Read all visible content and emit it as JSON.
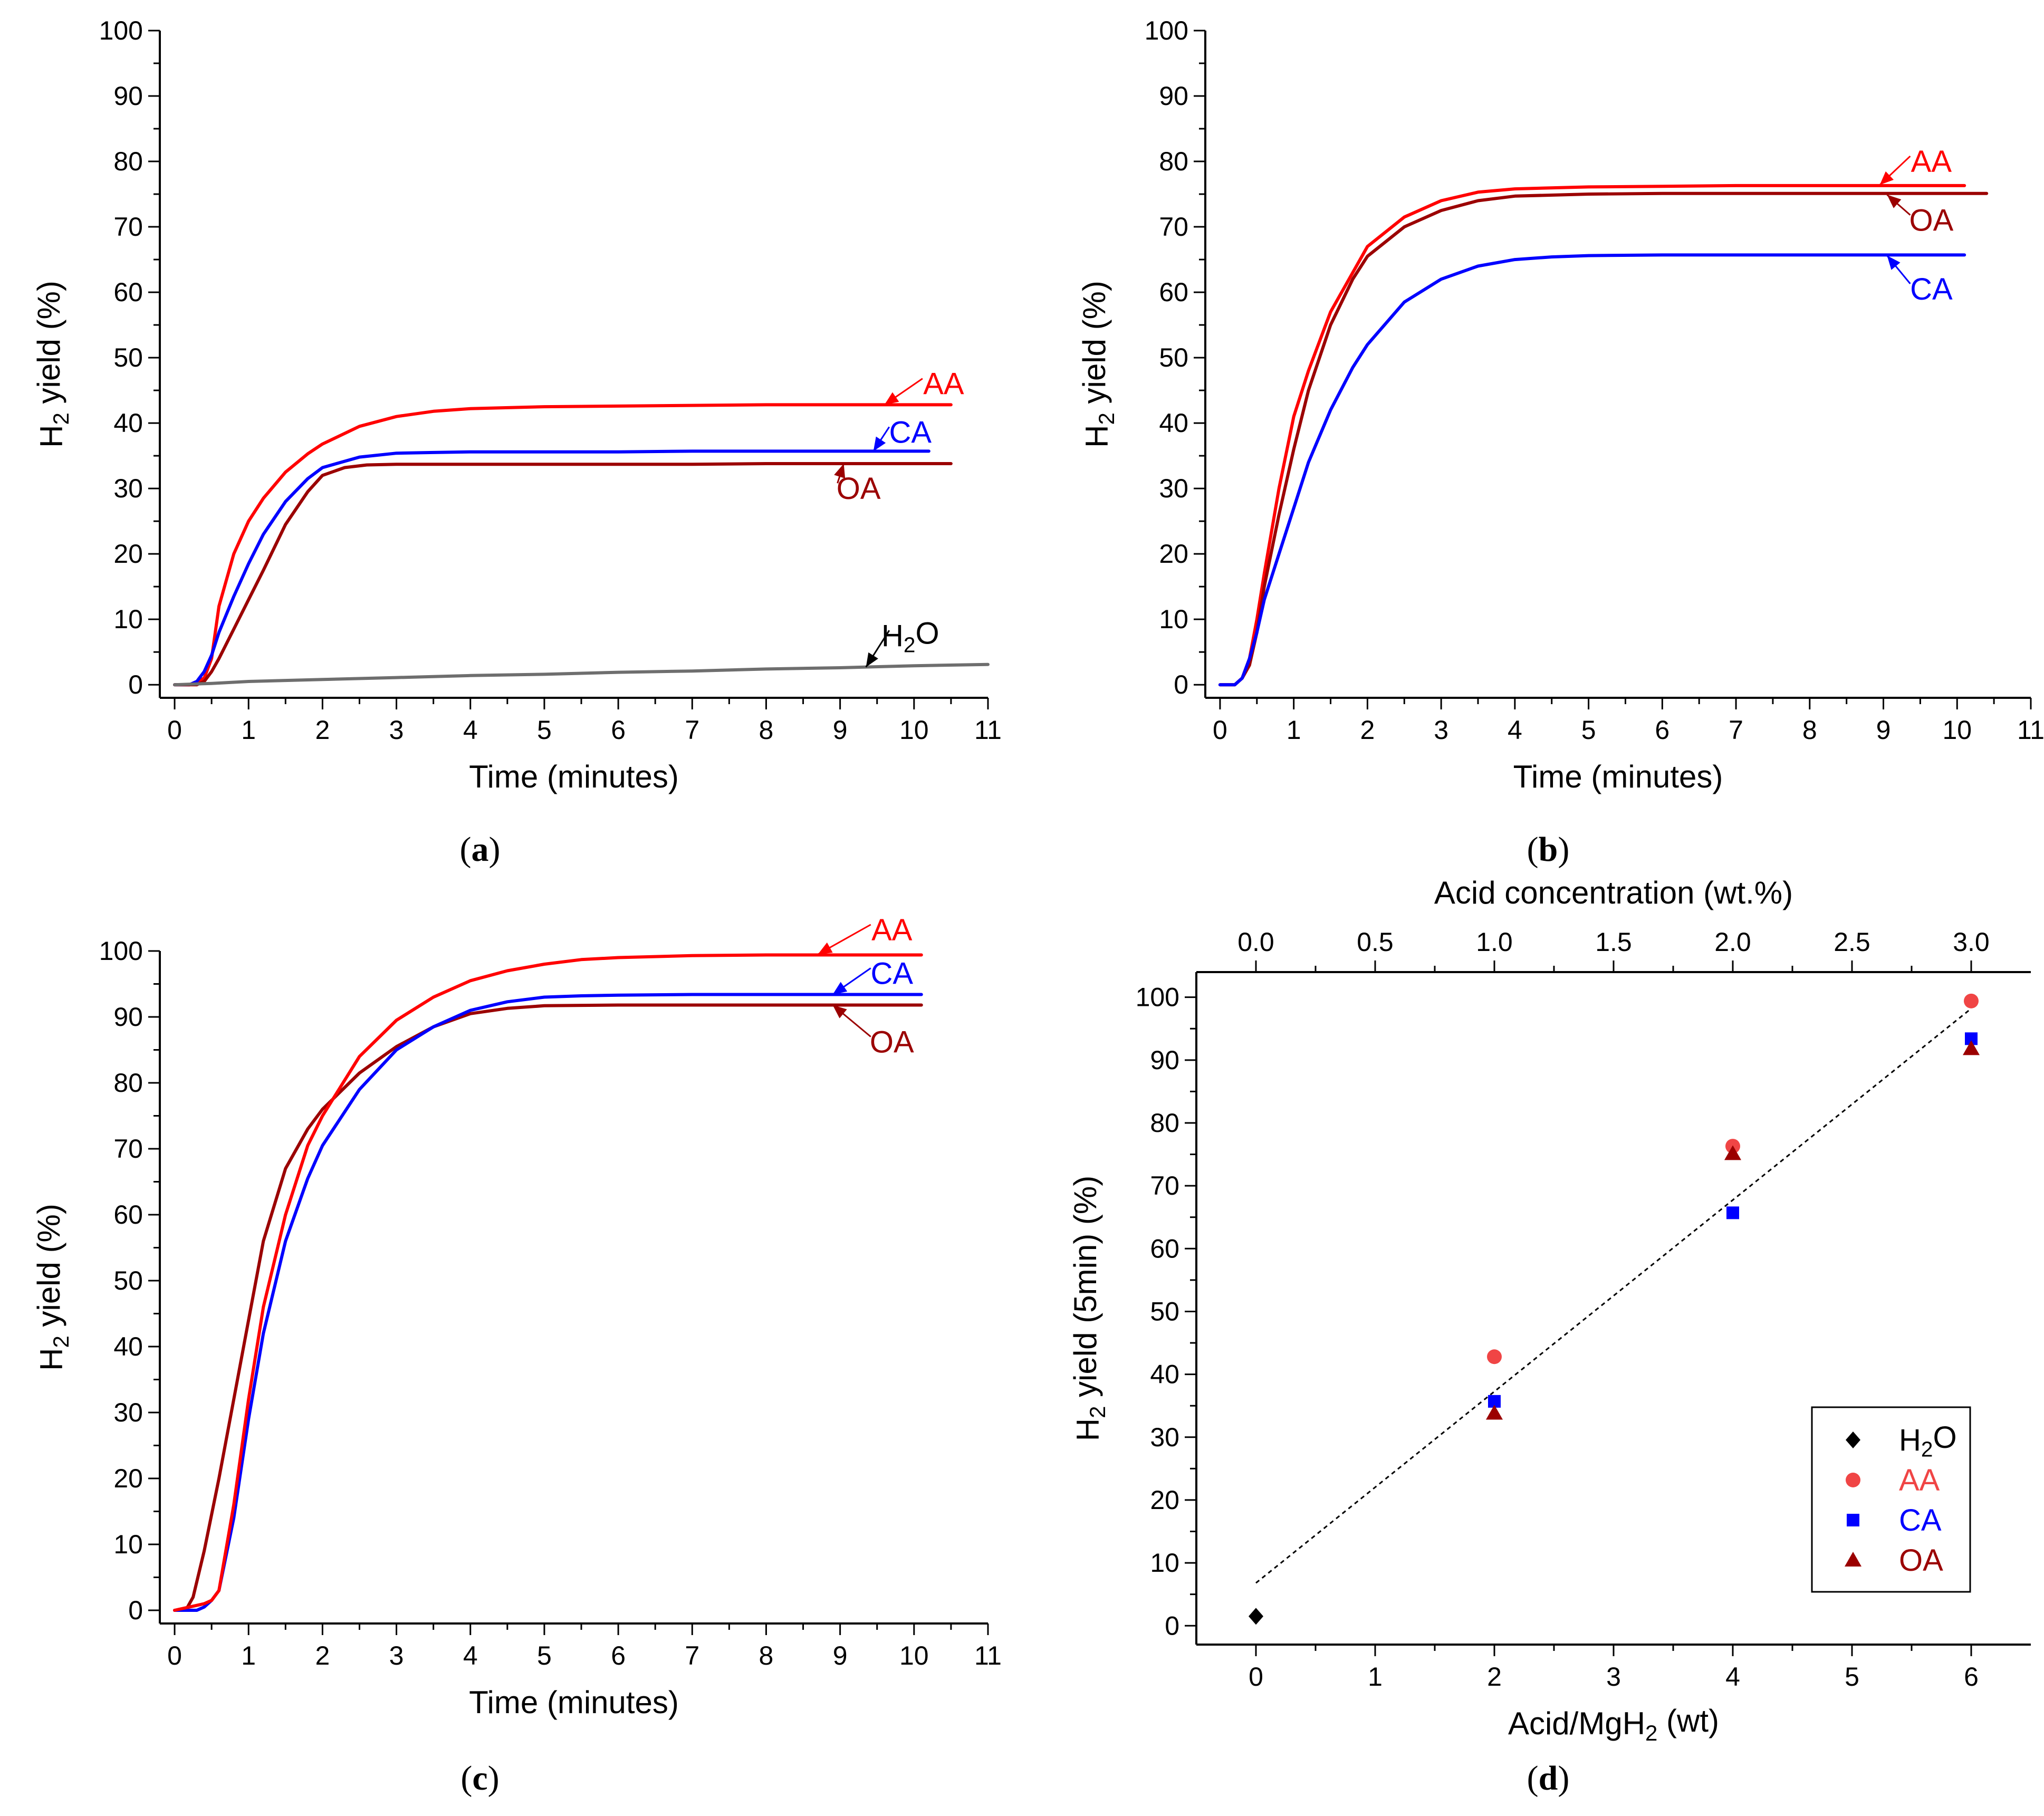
{
  "colors": {
    "AA": "#ff0000",
    "CA": "#0000ff",
    "OA": "#9b0000",
    "H2O": "#6e6e6e",
    "black": "#000000",
    "markerAA": "#f04545"
  },
  "chart_data": [
    {
      "id": "a",
      "type": "line",
      "panel_label": "a",
      "xlabel": "Time (minutes)",
      "ylabel": "H2 yield (%)",
      "xlim": [
        -0.2,
        11
      ],
      "ylim": [
        -2,
        100
      ],
      "xticks": [
        "0",
        "1",
        "2",
        "3",
        "4",
        "5",
        "6",
        "7",
        "8",
        "9",
        "10",
        "11"
      ],
      "yticks": [
        "0",
        "10",
        "20",
        "30",
        "40",
        "50",
        "60",
        "70",
        "80",
        "90",
        "100"
      ],
      "series": [
        {
          "name": "AA",
          "color": "AA",
          "x": [
            0,
            0.2,
            0.4,
            0.5,
            0.6,
            0.8,
            1,
            1.2,
            1.5,
            1.8,
            2,
            2.5,
            3,
            3.5,
            4,
            5,
            6,
            7,
            8,
            9,
            10,
            10.5
          ],
          "y": [
            0,
            0,
            1,
            4,
            12,
            20,
            25,
            28.5,
            32.5,
            35.3,
            36.8,
            39.5,
            41,
            41.8,
            42.2,
            42.5,
            42.6,
            42.7,
            42.8,
            42.8,
            42.8,
            42.8
          ]
        },
        {
          "name": "CA",
          "color": "CA",
          "x": [
            0,
            0.2,
            0.3,
            0.4,
            0.5,
            0.6,
            0.8,
            1,
            1.2,
            1.5,
            1.8,
            2,
            2.5,
            3,
            3.5,
            4,
            5,
            6,
            7,
            8,
            9,
            10,
            10.2
          ],
          "y": [
            0,
            0,
            0.5,
            2,
            4.5,
            8,
            13.5,
            18.5,
            23,
            28,
            31.5,
            33.2,
            34.8,
            35.4,
            35.5,
            35.6,
            35.6,
            35.6,
            35.7,
            35.7,
            35.7,
            35.7,
            35.7
          ]
        },
        {
          "name": "OA",
          "color": "OA",
          "x": [
            0,
            0.3,
            0.4,
            0.5,
            0.6,
            0.8,
            1,
            1.2,
            1.5,
            1.8,
            2,
            2.3,
            2.6,
            3,
            3.5,
            4,
            5,
            6,
            7,
            8,
            9,
            10,
            10.5
          ],
          "y": [
            0,
            0,
            0.5,
            2,
            4,
            8.5,
            13,
            17.5,
            24.5,
            29.5,
            32,
            33.2,
            33.6,
            33.7,
            33.7,
            33.7,
            33.7,
            33.7,
            33.7,
            33.8,
            33.8,
            33.8,
            33.8
          ]
        },
        {
          "name": "H2O",
          "color": "H2O",
          "x": [
            0,
            0.5,
            1,
            2,
            3,
            4,
            5,
            6,
            7,
            8,
            9,
            10,
            11
          ],
          "y": [
            0,
            0.2,
            0.5,
            0.8,
            1.1,
            1.4,
            1.6,
            1.9,
            2.1,
            2.4,
            2.6,
            2.9,
            3.1
          ]
        }
      ],
      "annotations": [
        {
          "text": "AA",
          "color": "AA",
          "tx": 10.4,
          "ty": 46,
          "ax": 9.6,
          "ay": 42.8
        },
        {
          "text": "CA",
          "color": "CA",
          "tx": 9.95,
          "ty": 38.6,
          "ax": 9.45,
          "ay": 35.7
        },
        {
          "text": "OA",
          "color": "OA",
          "tx": 9.25,
          "ty": 30,
          "ax": 9.05,
          "ay": 33.8
        },
        {
          "text": "H2O",
          "color": "black",
          "tx": 9.95,
          "ty": 7.5,
          "ax": 9.35,
          "ay": 2.7
        }
      ]
    },
    {
      "id": "b",
      "type": "line",
      "panel_label": "b",
      "xlabel": "Time (minutes)",
      "ylabel": "H2 yield (%)",
      "xlim": [
        -0.2,
        11
      ],
      "ylim": [
        -2,
        100
      ],
      "xticks": [
        "0",
        "1",
        "2",
        "3",
        "4",
        "5",
        "6",
        "7",
        "8",
        "9",
        "10",
        "11"
      ],
      "yticks": [
        "0",
        "10",
        "20",
        "30",
        "40",
        "50",
        "60",
        "70",
        "80",
        "90",
        "100"
      ],
      "series": [
        {
          "name": "AA",
          "color": "AA",
          "x": [
            0,
            0.2,
            0.3,
            0.4,
            0.5,
            0.6,
            0.8,
            1,
            1.2,
            1.5,
            1.8,
            2,
            2.5,
            3,
            3.5,
            4,
            5,
            6,
            7,
            8,
            9,
            10,
            10.1
          ],
          "y": [
            0,
            0,
            1,
            4,
            10,
            17,
            30,
            41,
            48,
            57,
            63,
            67,
            71.5,
            74,
            75.3,
            75.8,
            76.1,
            76.2,
            76.3,
            76.3,
            76.3,
            76.3,
            76.3
          ]
        },
        {
          "name": "OA",
          "color": "OA",
          "x": [
            0,
            0.2,
            0.3,
            0.4,
            0.5,
            0.6,
            0.8,
            1,
            1.2,
            1.5,
            1.8,
            2,
            2.5,
            3,
            3.5,
            4,
            5,
            6,
            7,
            8,
            9,
            10,
            10.4
          ],
          "y": [
            0,
            0,
            1,
            3,
            8,
            15,
            26,
            36,
            45,
            55,
            62,
            65.5,
            70,
            72.5,
            74,
            74.7,
            75,
            75.1,
            75.1,
            75.1,
            75.1,
            75.1,
            75.1
          ]
        },
        {
          "name": "CA",
          "color": "CA",
          "x": [
            0,
            0.2,
            0.3,
            0.4,
            0.5,
            0.6,
            0.8,
            1,
            1.2,
            1.5,
            1.8,
            2,
            2.5,
            3,
            3.5,
            4,
            4.5,
            5,
            6,
            7,
            8,
            9,
            10,
            10.1
          ],
          "y": [
            0,
            0,
            1,
            4,
            8,
            13,
            20,
            27,
            34,
            42,
            48.5,
            52,
            58.5,
            62,
            64,
            65,
            65.4,
            65.6,
            65.7,
            65.7,
            65.7,
            65.7,
            65.7,
            65.7
          ]
        }
      ],
      "annotations": [
        {
          "text": "AA",
          "color": "AA",
          "tx": 9.65,
          "ty": 80,
          "ax": 8.95,
          "ay": 76.4
        },
        {
          "text": "OA",
          "color": "OA",
          "tx": 9.65,
          "ty": 71,
          "ax": 9.05,
          "ay": 74.9
        },
        {
          "text": "CA",
          "color": "CA",
          "tx": 9.65,
          "ty": 60.5,
          "ax": 9.05,
          "ay": 65.6
        }
      ]
    },
    {
      "id": "c",
      "type": "line",
      "panel_label": "c",
      "xlabel": "Time (minutes)",
      "ylabel": "H2 yield (%)",
      "xlim": [
        -0.2,
        11
      ],
      "ylim": [
        -2,
        100
      ],
      "xticks": [
        "0",
        "1",
        "2",
        "3",
        "4",
        "5",
        "6",
        "7",
        "8",
        "9",
        "10",
        "11"
      ],
      "yticks": [
        "0",
        "10",
        "20",
        "30",
        "40",
        "50",
        "60",
        "70",
        "80",
        "90",
        "100"
      ],
      "series": [
        {
          "name": "OA",
          "color": "OA",
          "x": [
            0,
            0.15,
            0.25,
            0.4,
            0.6,
            0.8,
            1,
            1.2,
            1.5,
            1.8,
            2,
            2.5,
            3,
            3.5,
            4,
            4.5,
            5,
            6,
            7,
            8,
            9,
            10,
            10.1
          ],
          "y": [
            0,
            0,
            2,
            9,
            20,
            32,
            44,
            56,
            67,
            73,
            76,
            81.5,
            85.5,
            88.5,
            90.5,
            91.3,
            91.7,
            91.8,
            91.8,
            91.8,
            91.8,
            91.8,
            91.8
          ]
        },
        {
          "name": "CA",
          "color": "CA",
          "x": [
            0,
            0.3,
            0.4,
            0.5,
            0.6,
            0.8,
            1,
            1.2,
            1.5,
            1.8,
            2,
            2.5,
            3,
            3.5,
            4,
            4.5,
            5,
            5.5,
            6,
            7,
            8,
            9,
            10,
            10.1
          ],
          "y": [
            0,
            0,
            0.5,
            1.5,
            3,
            14,
            29,
            42,
            56,
            65.5,
            70.5,
            79,
            85,
            88.5,
            91,
            92.3,
            93,
            93.2,
            93.3,
            93.4,
            93.4,
            93.4,
            93.4,
            93.4
          ]
        },
        {
          "name": "AA",
          "color": "AA",
          "x": [
            0,
            0.4,
            0.5,
            0.6,
            0.8,
            1,
            1.2,
            1.5,
            1.8,
            2,
            2.5,
            3,
            3.5,
            4,
            4.5,
            5,
            5.5,
            6,
            7,
            8,
            9,
            10,
            10.1
          ],
          "y": [
            0,
            1,
            1.5,
            3,
            16,
            32,
            46,
            60,
            70.5,
            75,
            84,
            89.5,
            93,
            95.5,
            97,
            98,
            98.7,
            99,
            99.3,
            99.4,
            99.4,
            99.4,
            99.4
          ]
        }
      ],
      "annotations": [
        {
          "text": "AA",
          "color": "AA",
          "tx": 9.7,
          "ty": 103.2,
          "ax": 8.7,
          "ay": 99.5
        },
        {
          "text": "CA",
          "color": "CA",
          "tx": 9.7,
          "ty": 96.6,
          "ax": 8.9,
          "ay": 93.4
        },
        {
          "text": "OA",
          "color": "OA",
          "tx": 9.7,
          "ty": 86.2,
          "ax": 8.9,
          "ay": 91.8
        }
      ]
    },
    {
      "id": "d",
      "type": "scatter",
      "panel_label": "d",
      "xlabel": "Acid/MgH2 (wt)",
      "ylabel": "H2 yield (5min) (%)",
      "top_xlabel": "Acid concentration (wt.%)",
      "xlim": [
        -0.5,
        6.5
      ],
      "ylim": [
        -3,
        104
      ],
      "xticks": [
        "0",
        "1",
        "2",
        "3",
        "4",
        "5",
        "6"
      ],
      "top_xticks": [
        "0.0",
        "0.5",
        "1.0",
        "1.5",
        "2.0",
        "2.5",
        "3.0"
      ],
      "yticks": [
        "0",
        "10",
        "20",
        "30",
        "40",
        "50",
        "60",
        "70",
        "80",
        "90",
        "100"
      ],
      "series": [
        {
          "name": "H2O",
          "color": "black",
          "marker": "diamond",
          "x": [
            0
          ],
          "y": [
            1.5
          ]
        },
        {
          "name": "AA",
          "color": "markerAA",
          "marker": "circle",
          "x": [
            2,
            4,
            6
          ],
          "y": [
            42.8,
            76.3,
            99.4
          ]
        },
        {
          "name": "CA",
          "color": "CA",
          "marker": "square",
          "x": [
            2,
            4,
            6
          ],
          "y": [
            35.7,
            65.7,
            93.4
          ]
        },
        {
          "name": "OA",
          "color": "OA",
          "marker": "triangle",
          "x": [
            2,
            4,
            6
          ],
          "y": [
            33.8,
            75.1,
            91.8
          ]
        }
      ],
      "fit_line": {
        "x": [
          0,
          6
        ],
        "y": [
          6.8,
          98.2
        ],
        "style": "dotted"
      },
      "legend": {
        "position": "bottom-right",
        "entries": [
          "H2O",
          "AA",
          "CA",
          "OA"
        ]
      }
    }
  ]
}
